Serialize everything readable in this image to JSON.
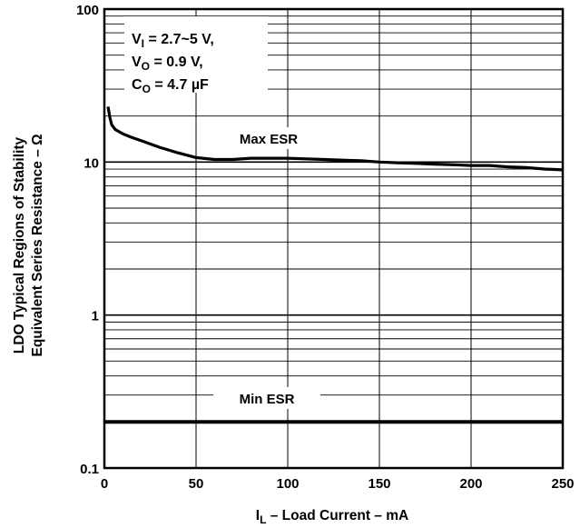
{
  "chart_data": {
    "type": "line",
    "ylabel_lines": [
      "LDO Typical Regions of Stability",
      "Equivalent Series Resistance – Ω"
    ],
    "xlabel": {
      "symbol": "I",
      "subscript": "L",
      "rest": " – Load Current – mA"
    },
    "x_scale": "linear",
    "y_scale": "log",
    "xlim": [
      0,
      250
    ],
    "ylim": [
      0.1,
      100
    ],
    "x_ticks": [
      0,
      50,
      100,
      150,
      200,
      250
    ],
    "y_ticks": [
      0.1,
      1,
      10,
      100
    ],
    "y_tick_labels": [
      "0.1",
      "1",
      "10",
      "100"
    ],
    "grid": true,
    "conditions": [
      {
        "symbol": "V",
        "subscript": "I",
        "rest": " = 2.7~5 V,"
      },
      {
        "symbol": "V",
        "subscript": "O",
        "rest": " = 0.9 V,"
      },
      {
        "symbol": "C",
        "subscript": "O",
        "rest": " = 4.7 µF"
      }
    ],
    "series": [
      {
        "name": "Max ESR",
        "x": [
          2,
          3,
          4,
          6,
          10,
          15,
          20,
          30,
          40,
          50,
          60,
          70,
          80,
          90,
          100,
          110,
          120,
          130,
          140,
          150,
          160,
          170,
          180,
          190,
          200,
          210,
          220,
          230,
          240,
          250
        ],
        "y": [
          23,
          19.5,
          17.5,
          16.3,
          15.3,
          14.5,
          13.8,
          12.5,
          11.5,
          10.7,
          10.4,
          10.4,
          10.6,
          10.6,
          10.6,
          10.5,
          10.4,
          10.3,
          10.2,
          10.0,
          9.9,
          9.8,
          9.7,
          9.6,
          9.5,
          9.5,
          9.3,
          9.2,
          9.0,
          8.9
        ]
      },
      {
        "name": "Min ESR",
        "x": [
          0,
          250
        ],
        "y": [
          0.2,
          0.2
        ]
      }
    ]
  }
}
